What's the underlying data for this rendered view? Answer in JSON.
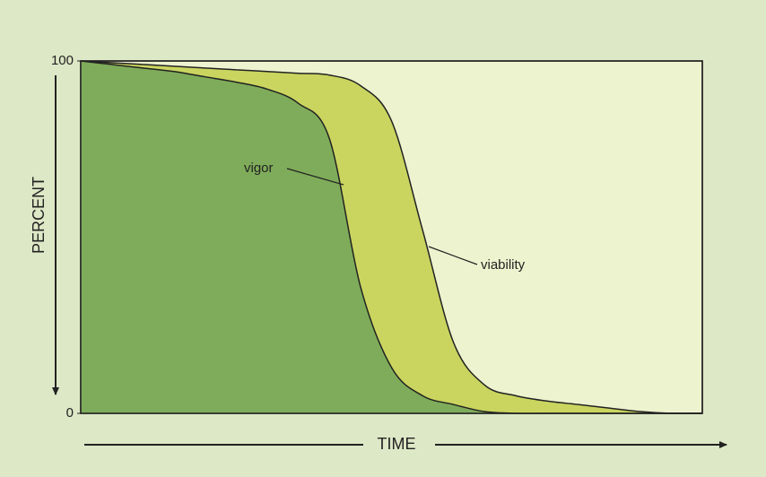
{
  "chart_data": {
    "type": "area",
    "y_label": "PERCENT",
    "x_label": "TIME",
    "categories": [
      null,
      null,
      null,
      null,
      null,
      null,
      null,
      null,
      null,
      null,
      null,
      null,
      null,
      null,
      null,
      null,
      null,
      null,
      null,
      null,
      null
    ],
    "series": [
      {
        "name": "viability",
        "color": "#c9d55f",
        "values": [
          100,
          99.5,
          99,
          98.5,
          98,
          97.5,
          97,
          96.5,
          96,
          93,
          83,
          52,
          20,
          8,
          5,
          3.5,
          2.5,
          1.5,
          0.5,
          0,
          0
        ]
      },
      {
        "name": "vigor",
        "color": "#7fac5a",
        "values": [
          100,
          99,
          98,
          97,
          95.5,
          94,
          92,
          88,
          78,
          36,
          13,
          5,
          2.5,
          0.5,
          0,
          0,
          0,
          0,
          0,
          0,
          0
        ]
      }
    ],
    "background": "#eef3cf",
    "ylim": [
      0,
      100
    ],
    "yticks": [
      0,
      100
    ]
  }
}
